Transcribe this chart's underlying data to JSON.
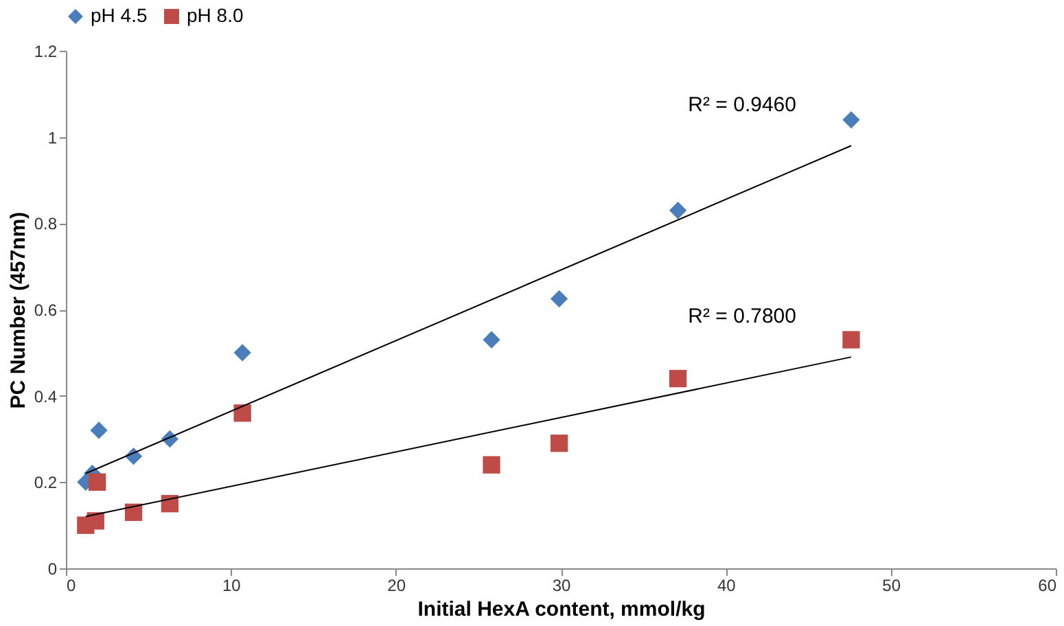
{
  "chart_data": {
    "type": "scatter",
    "xlabel": "Initial HexA content, mmol/kg",
    "ylabel": "PC Number (457nm)",
    "xlim": [
      0,
      60
    ],
    "xticks": [
      0,
      10,
      20,
      30,
      40,
      50,
      60
    ],
    "ylim": [
      0,
      1.2
    ],
    "yticks": [
      0,
      0.2,
      0.4,
      0.6,
      0.8,
      1,
      1.2
    ],
    "legend": "top",
    "grid": false,
    "series": [
      {
        "name": "pH 4.5",
        "color": "#4a7ebb",
        "marker": "diamond",
        "x": [
          1.2,
          1.6,
          2.0,
          4.1,
          6.3,
          10.7,
          25.8,
          29.9,
          37.1,
          47.6
        ],
        "values": [
          0.2,
          0.22,
          0.32,
          0.26,
          0.3,
          0.5,
          0.53,
          0.625,
          0.83,
          1.04
        ]
      },
      {
        "name": "pH 8.0",
        "color": "#be4b48",
        "marker": "square",
        "x": [
          1.2,
          1.8,
          1.9,
          4.1,
          6.3,
          10.7,
          25.8,
          29.9,
          37.1,
          47.6
        ],
        "values": [
          0.1,
          0.11,
          0.2,
          0.13,
          0.15,
          0.36,
          0.24,
          0.29,
          0.44,
          0.53
        ]
      },
      {
        "type": "line",
        "color": "#000000",
        "x": [
          1.2,
          47.6
        ],
        "values": [
          0.22,
          0.98
        ]
      },
      {
        "type": "line",
        "color": "#000000",
        "x": [
          1.2,
          47.6
        ],
        "values": [
          0.12,
          0.49
        ]
      }
    ],
    "annotations": [
      "R² = 0.9460",
      "R² = 0.7800"
    ]
  }
}
